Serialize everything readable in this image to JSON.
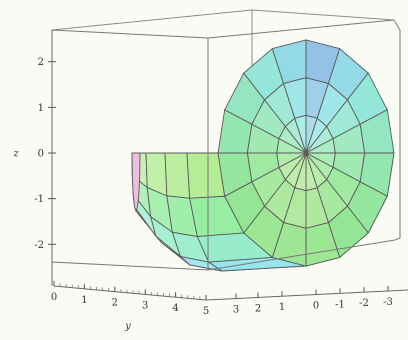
{
  "chart_data": {
    "type": "surface3d",
    "surface": "solid of revolution about the y-axis (faceted mesh, rainbow shading)",
    "axes": {
      "x": {
        "label": "",
        "ticks": [
          "0",
          "-1",
          "-2",
          "-3"
        ]
      },
      "y": {
        "label": "y",
        "ticks": [
          "0",
          "1",
          "2",
          "3",
          "4",
          "5"
        ]
      },
      "y_back_ticks": [
        "3",
        "2",
        "1"
      ],
      "z": {
        "label": "z",
        "ticks": [
          "2",
          "1",
          "0",
          "-1",
          "-2"
        ]
      }
    },
    "z_range": [
      -2.3,
      2.3
    ],
    "y_range": [
      0,
      5
    ],
    "box": true,
    "grid": false,
    "mesh_lines": true,
    "colors": {
      "mesh": "#5a5a5a",
      "box": "#666666",
      "background": "#fbfbf6"
    }
  }
}
